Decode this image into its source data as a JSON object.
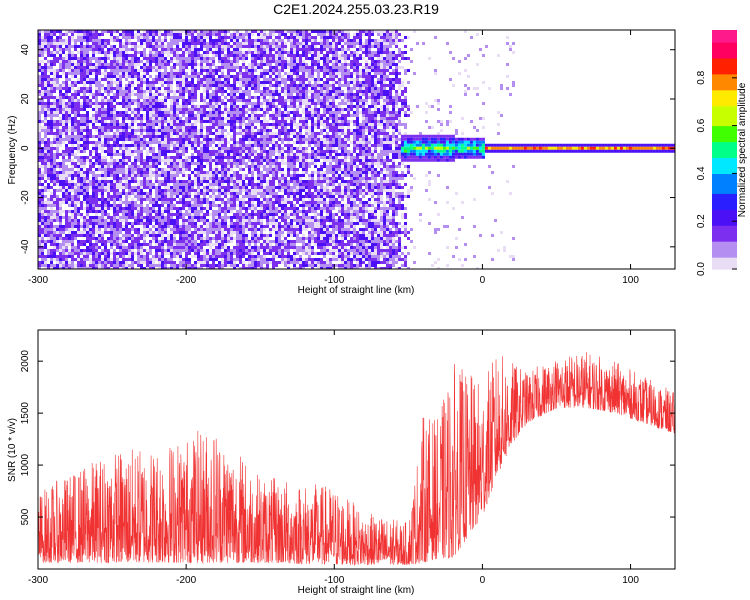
{
  "title": "C2E1.2024.255.03.23.R19",
  "chart_data": [
    {
      "type": "heatmap",
      "xlabel": "Height of straight line (km)",
      "ylabel": "Frequency (Hz)",
      "xlim": [
        -300,
        130
      ],
      "ylim": [
        -49,
        48
      ],
      "xticks": [
        -300,
        -200,
        -100,
        0,
        100
      ],
      "yticks": [
        -40,
        -20,
        0,
        20,
        40
      ],
      "colorbar": {
        "label": "Normalized spectral amplitude",
        "range": [
          0,
          1
        ],
        "ticks": [
          "0.0",
          "0.2",
          "0.4",
          "0.6",
          "0.8"
        ],
        "colors": [
          "#e9dcf5",
          "#b48ef0",
          "#7d2ff0",
          "#4b10f5",
          "#2a20ff",
          "#0080ff",
          "#00e8ff",
          "#00ff88",
          "#40ff00",
          "#c8ff00",
          "#ffea00",
          "#ff8800",
          "#ff2000",
          "#ff0060",
          "#ff1a8c"
        ]
      },
      "features": {
        "noise_region_x": [
          -300,
          -50
        ],
        "signal_band_freq_hz": 0,
        "signal_band_x": [
          -55,
          130
        ],
        "strong_band_x": [
          0,
          130
        ]
      }
    },
    {
      "type": "line",
      "xlabel": "Height of straight line (km)",
      "ylabel": "SNR (10 * v/v)",
      "xlim": [
        -300,
        130
      ],
      "ylim": [
        0,
        2300
      ],
      "xticks": [
        -300,
        -200,
        -100,
        0,
        100
      ],
      "yticks": [
        500,
        1000,
        1500,
        2000
      ],
      "color": "#f03232",
      "envelope": {
        "x": [
          -300,
          -250,
          -220,
          -180,
          -150,
          -100,
          -80,
          -50,
          -40,
          -30,
          -20,
          -10,
          0,
          10,
          20,
          30,
          50,
          70,
          90,
          110,
          130
        ],
        "base": [
          60,
          60,
          60,
          60,
          60,
          40,
          40,
          40,
          60,
          100,
          100,
          300,
          500,
          900,
          1200,
          1400,
          1550,
          1550,
          1500,
          1400,
          1300
        ],
        "peak": [
          750,
          1150,
          1200,
          1400,
          900,
          800,
          550,
          450,
          1500,
          1450,
          2000,
          1900,
          1800,
          2100,
          2000,
          1900,
          2050,
          2100,
          2000,
          1850,
          1700
        ]
      }
    }
  ]
}
